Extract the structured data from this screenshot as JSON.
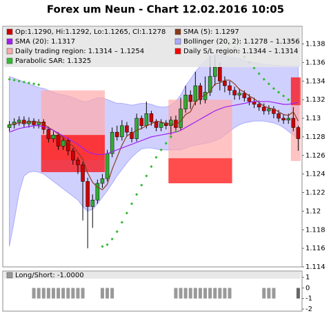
{
  "chart_data": [
    {
      "type": "candlestick",
      "title": "Forex um Neun - Chart 12.02.2016 10:05",
      "ohlc_label": "Op:1.1290, Hi:1.1292, Lo:1.1265, Cl:1.1278",
      "up_color": "#33aa33",
      "down_color": "#cc0000",
      "ylim": [
        1.114,
        1.1399
      ],
      "yticks": [
        1.114,
        1.116,
        1.118,
        1.12,
        1.122,
        1.124,
        1.126,
        1.128,
        1.13,
        1.132,
        1.134,
        1.136,
        1.138
      ],
      "open": [
        1.129,
        1.1293,
        1.1296,
        1.1298,
        1.1294,
        1.1297,
        1.1293,
        1.1296,
        1.1288,
        1.1278,
        1.1282,
        1.127,
        1.1276,
        1.1265,
        1.1255,
        1.125,
        1.1232,
        1.1205,
        1.1212,
        1.123,
        1.1235,
        1.1262,
        1.1285,
        1.128,
        1.1292,
        1.1285,
        1.1278,
        1.13,
        1.1292,
        1.1305,
        1.1296,
        1.129,
        1.1295,
        1.1292,
        1.1298,
        1.129,
        1.131,
        1.1325,
        1.1318,
        1.1335,
        1.132,
        1.1328,
        1.1345,
        1.1355,
        1.134,
        1.1335,
        1.133,
        1.1325,
        1.1327,
        1.1322,
        1.1318,
        1.1315,
        1.1312,
        1.1308,
        1.131,
        1.1305,
        1.13,
        1.1298,
        1.13,
        1.129
      ],
      "high": [
        1.1297,
        1.13,
        1.1302,
        1.1302,
        1.1301,
        1.13,
        1.1299,
        1.1299,
        1.1291,
        1.1286,
        1.1285,
        1.128,
        1.1279,
        1.1268,
        1.1258,
        1.1253,
        1.1236,
        1.1218,
        1.1234,
        1.124,
        1.1266,
        1.129,
        1.1292,
        1.1298,
        1.1296,
        1.129,
        1.1305,
        1.1303,
        1.1318,
        1.1308,
        1.1299,
        1.1299,
        1.1298,
        1.1302,
        1.1303,
        1.1322,
        1.1335,
        1.133,
        1.135,
        1.1338,
        1.1345,
        1.1368,
        1.1368,
        1.136,
        1.1345,
        1.134,
        1.1334,
        1.1332,
        1.133,
        1.1326,
        1.1322,
        1.1319,
        1.1316,
        1.1314,
        1.1313,
        1.1309,
        1.1304,
        1.1305,
        1.1312,
        1.1292
      ],
      "low": [
        1.1286,
        1.1289,
        1.1292,
        1.129,
        1.129,
        1.1289,
        1.1289,
        1.1283,
        1.1274,
        1.1274,
        1.1266,
        1.1266,
        1.126,
        1.125,
        1.124,
        1.119,
        1.116,
        1.1182,
        1.1208,
        1.1225,
        1.1232,
        1.1258,
        1.1276,
        1.1276,
        1.128,
        1.1274,
        1.1275,
        1.1288,
        1.1289,
        1.1292,
        1.1286,
        1.1286,
        1.1288,
        1.1282,
        1.1285,
        1.1287,
        1.1306,
        1.131,
        1.1314,
        1.1315,
        1.1316,
        1.1324,
        1.1335,
        1.133,
        1.1328,
        1.1325,
        1.132,
        1.132,
        1.1318,
        1.1314,
        1.1311,
        1.1308,
        1.1304,
        1.1304,
        1.13,
        1.1296,
        1.1294,
        1.1294,
        1.1286,
        1.1265
      ],
      "close": [
        1.1293,
        1.1296,
        1.1298,
        1.1294,
        1.1297,
        1.1293,
        1.1296,
        1.1288,
        1.1278,
        1.1282,
        1.127,
        1.1276,
        1.1265,
        1.1255,
        1.125,
        1.1232,
        1.1205,
        1.1212,
        1.123,
        1.1235,
        1.1262,
        1.1285,
        1.128,
        1.1292,
        1.1285,
        1.1278,
        1.13,
        1.1292,
        1.1305,
        1.1296,
        1.129,
        1.1295,
        1.1292,
        1.1298,
        1.129,
        1.131,
        1.1325,
        1.1318,
        1.1335,
        1.132,
        1.1328,
        1.1345,
        1.1355,
        1.134,
        1.1335,
        1.133,
        1.1325,
        1.1327,
        1.1322,
        1.1318,
        1.1315,
        1.1312,
        1.1308,
        1.131,
        1.1305,
        1.13,
        1.1298,
        1.13,
        1.129,
        1.1278
      ],
      "zones": [
        {
          "name": "Daily trading region: 1.1314 – 1.1254",
          "color": "#ffaaaa",
          "boxes": [
            {
              "start": 7,
              "end": 19,
              "high": 1.133,
              "low": 1.1255
            },
            {
              "start": 33,
              "end": 45,
              "high": 1.132,
              "low": 1.1257
            },
            {
              "start": 58,
              "end": 59,
              "high": 1.1314,
              "low": 1.1254
            }
          ]
        },
        {
          "name": "Daily S/L region: 1.1344 – 1.1314",
          "color": "#ff0000",
          "boxes": [
            {
              "start": 7,
              "end": 19,
              "high": 1.1282,
              "low": 1.1242
            },
            {
              "start": 33,
              "end": 45,
              "high": 1.1257,
              "low": 1.123
            },
            {
              "start": 58,
              "end": 59,
              "high": 1.1344,
              "low": 1.1314
            }
          ]
        }
      ],
      "series": [
        {
          "name": "SMA (5): 1.1297",
          "color": "#8b3a1a",
          "style": "line",
          "values": [
            1.1293,
            1.1294,
            1.1295,
            1.1295,
            1.1296,
            1.1296,
            1.1296,
            1.1294,
            1.129,
            1.1287,
            1.1283,
            1.1279,
            1.1274,
            1.127,
            1.1263,
            1.1256,
            1.1241,
            1.1231,
            1.1226,
            1.1223,
            1.1229,
            1.1245,
            1.1258,
            1.1271,
            1.1281,
            1.1284,
            1.1287,
            1.1289,
            1.1292,
            1.1294,
            1.1297,
            1.1296,
            1.1294,
            1.1294,
            1.1293,
            1.1297,
            1.1304,
            1.1307,
            1.1318,
            1.1322,
            1.1325,
            1.1329,
            1.1337,
            1.1338,
            1.1341,
            1.1341,
            1.1337,
            1.1331,
            1.1328,
            1.1324,
            1.1321,
            1.1317,
            1.1313,
            1.1311,
            1.131,
            1.1307,
            1.1304,
            1.1303,
            1.1307,
            1.1297
          ]
        },
        {
          "name": "SMA (20): 1.1317",
          "color": "#a020f0",
          "style": "line",
          "values": [
            1.1285,
            1.1287,
            1.1289,
            1.129,
            1.1291,
            1.1292,
            1.1292,
            1.1291,
            1.1289,
            1.1287,
            1.1284,
            1.1281,
            1.1278,
            1.1275,
            1.1272,
            1.1268,
            1.1264,
            1.1262,
            1.1261,
            1.1261,
            1.1262,
            1.1264,
            1.1266,
            1.1268,
            1.127,
            1.1272,
            1.1274,
            1.1276,
            1.1278,
            1.128,
            1.1281,
            1.1282,
            1.1283,
            1.1284,
            1.1285,
            1.1287,
            1.129,
            1.1293,
            1.1296,
            1.1299,
            1.1302,
            1.1305,
            1.1308,
            1.131,
            1.1312,
            1.1313,
            1.1314,
            1.1315,
            1.1316,
            1.1317,
            1.1318,
            1.1318,
            1.1318,
            1.1318,
            1.1317,
            1.1316,
            1.1315,
            1.1315,
            1.1316,
            1.1317
          ]
        },
        {
          "name": "Bollinger (20, 2): 1.1278 – 1.1356",
          "color": "#aaaaff",
          "style": "band",
          "upper": [
            1.1345,
            1.1343,
            1.1341,
            1.1339,
            1.1337,
            1.1335,
            1.1333,
            1.1332,
            1.133,
            1.1328,
            1.1326,
            1.1325,
            1.1324,
            1.1322,
            1.132,
            1.1318,
            1.1318,
            1.132,
            1.1322,
            1.1322,
            1.132,
            1.1318,
            1.1316,
            1.1316,
            1.1315,
            1.1314,
            1.1315,
            1.1316,
            1.1316,
            1.1315,
            1.1313,
            1.1312,
            1.1312,
            1.1314,
            1.1318,
            1.1325,
            1.1335,
            1.1342,
            1.135,
            1.1356,
            1.1362,
            1.1366,
            1.1368,
            1.1368,
            1.1367,
            1.1366,
            1.1365,
            1.1364,
            1.1362,
            1.1361,
            1.136,
            1.1359,
            1.1358,
            1.1358,
            1.1357,
            1.1357,
            1.1356,
            1.1356,
            1.1356,
            1.1356
          ],
          "lower": [
            1.1162,
            1.119,
            1.122,
            1.1238,
            1.1242,
            1.1243,
            1.1242,
            1.124,
            1.1236,
            1.1232,
            1.1228,
            1.1224,
            1.122,
            1.1216,
            1.1212,
            1.1205,
            1.12,
            1.1202,
            1.1208,
            1.1215,
            1.1222,
            1.123,
            1.1238,
            1.1245,
            1.1252,
            1.1258,
            1.1263,
            1.1267,
            1.1268,
            1.1268,
            1.1267,
            1.1266,
            1.1266,
            1.1266,
            1.1266,
            1.1266,
            1.1268,
            1.127,
            1.1271,
            1.1272,
            1.1273,
            1.1274,
            1.1276,
            1.1278,
            1.1282,
            1.1286,
            1.129,
            1.1293,
            1.1295,
            1.1296,
            1.1297,
            1.1297,
            1.1297,
            1.1296,
            1.1295,
            1.1293,
            1.129,
            1.1286,
            1.1282,
            1.1278
          ]
        },
        {
          "name": "Parabolic SAR: 1.1325",
          "color": "#33bb33",
          "style": "dots",
          "values": [
            1.1342,
            1.1341,
            1.134,
            1.1339,
            1.1338,
            1.1337,
            1.1336,
            null,
            null,
            null,
            null,
            null,
            null,
            null,
            null,
            null,
            null,
            null,
            null,
            1.1162,
            1.1164,
            1.117,
            1.1178,
            1.1188,
            1.1198,
            1.1208,
            1.1218,
            1.1228,
            1.1238,
            1.1248,
            1.1258,
            1.1266,
            1.1273,
            1.128,
            1.1286,
            null,
            null,
            null,
            null,
            null,
            null,
            null,
            null,
            null,
            null,
            1.138,
            1.1376,
            1.1372,
            1.1366,
            1.136,
            1.1354,
            1.1348,
            1.1342,
            1.1337,
            1.1332,
            1.1328,
            1.1324,
            1.132,
            null,
            null
          ]
        }
      ]
    },
    {
      "type": "bar",
      "title": "Long/Short: -1.0000",
      "color": "#999999",
      "last_color": "#666666",
      "ylim": [
        -2.2,
        1.6
      ],
      "yticks": [
        1,
        0,
        -1,
        -2
      ],
      "values": [
        0,
        0,
        0,
        0,
        0,
        -1,
        -1,
        -1,
        -1,
        -1,
        -1,
        -1,
        -1,
        -1,
        -1,
        -1,
        0,
        0,
        0,
        -1,
        -1,
        -1,
        0,
        0,
        0,
        0,
        0,
        0,
        0,
        0,
        0,
        0,
        0,
        0,
        -1,
        -1,
        -1,
        -1,
        -1,
        -1,
        -1,
        -1,
        -1,
        -1,
        -1,
        -1,
        0,
        0,
        0,
        0,
        0,
        0,
        -1,
        -1,
        -1,
        0,
        0,
        0,
        0,
        -1
      ]
    }
  ]
}
